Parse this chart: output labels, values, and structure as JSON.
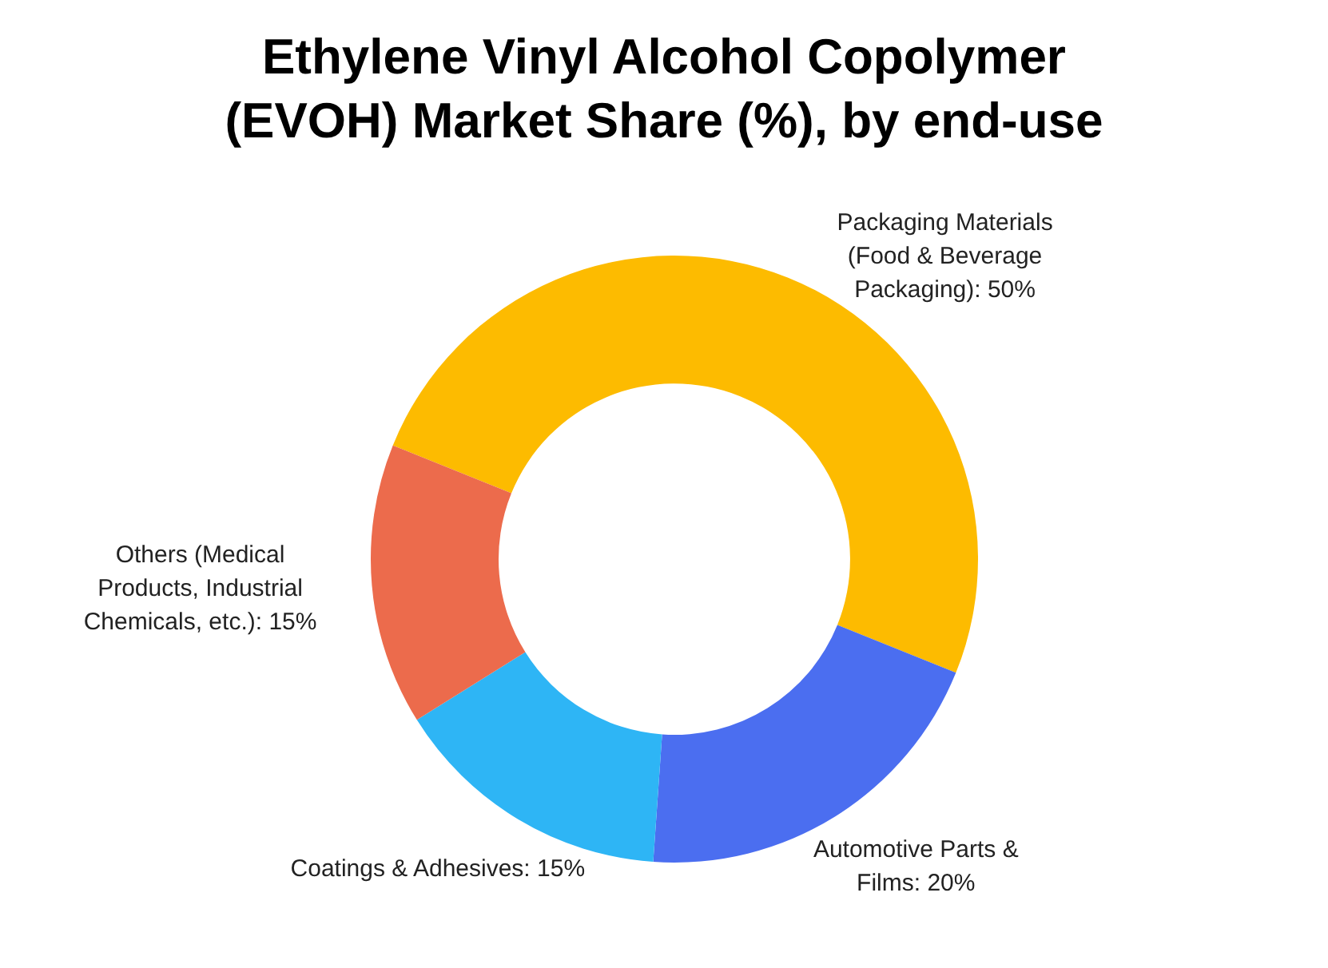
{
  "chart_data": {
    "type": "donut",
    "title": "Ethylene Vinyl Alcohol Copolymer (EVOH) Market Share (%), by end-use",
    "categories": [
      "Packaging Materials (Food & Beverage Packaging)",
      "Automotive Parts & Films",
      "Coatings & Adhesives",
      "Others (Medical Products, Industrial Chemicals, etc.)"
    ],
    "values": [
      50,
      20,
      15,
      15
    ],
    "value_labels": [
      "50%",
      "20%",
      "15%",
      "15%"
    ],
    "colors": [
      "#fdbb00",
      "#4b6ef0",
      "#2eb5f5",
      "#ec6b4c"
    ],
    "legend": false
  }
}
